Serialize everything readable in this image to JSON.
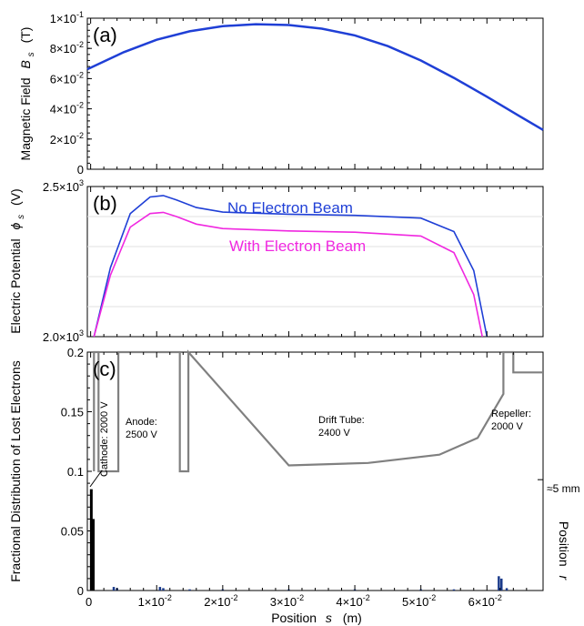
{
  "chart_data": [
    {
      "panel": "(a)",
      "type": "line",
      "ylabel": "Magnetic Field",
      "ysymbol": "B",
      "ysub": "s",
      "yunit": "(T)",
      "ylim": [
        0,
        0.1
      ],
      "xlim": [
        -0.0005,
        0.0685
      ],
      "yticks": [
        {
          "v": 0,
          "m": "0",
          "e": ""
        },
        {
          "v": 0.02,
          "m": "2×10",
          "e": "-2"
        },
        {
          "v": 0.04,
          "m": "4×10",
          "e": "-2"
        },
        {
          "v": 0.06,
          "m": "6×10",
          "e": "-2"
        },
        {
          "v": 0.08,
          "m": "8×10",
          "e": "-2"
        },
        {
          "v": 0.1,
          "m": "1×10",
          "e": "-1"
        }
      ],
      "series": [
        {
          "color": "#1f3fd6",
          "x": [
            -0.0005,
            0.005,
            0.01,
            0.015,
            0.02,
            0.025,
            0.03,
            0.035,
            0.04,
            0.045,
            0.05,
            0.055,
            0.06,
            0.065,
            0.0685
          ],
          "y": [
            0.0662,
            0.0775,
            0.0857,
            0.0913,
            0.0947,
            0.096,
            0.0955,
            0.0931,
            0.0886,
            0.0815,
            0.072,
            0.0605,
            0.048,
            0.035,
            0.026
          ]
        }
      ]
    },
    {
      "panel": "(b)",
      "type": "line",
      "ylabel": "Electric Potential",
      "ysymbol": "ϕ",
      "ysub": "s",
      "yunit": "(V)",
      "ylim": [
        2000,
        2500
      ],
      "xlim": [
        -0.0005,
        0.0685
      ],
      "yticks": [
        {
          "v": 2000,
          "m": "2.0×10",
          "e": "3"
        },
        {
          "v": 2500,
          "m": "2.5×10",
          "e": "3"
        }
      ],
      "series": [
        {
          "name": "No Electron Beam",
          "color": "#1f3fd6",
          "x": [
            0.0005,
            0.003,
            0.006,
            0.009,
            0.011,
            0.013,
            0.016,
            0.02,
            0.03,
            0.04,
            0.05,
            0.055,
            0.058,
            0.06
          ],
          "y": [
            2000,
            2230,
            2410,
            2465,
            2470,
            2455,
            2430,
            2415,
            2408,
            2404,
            2395,
            2350,
            2220,
            2000
          ]
        },
        {
          "name": "With Electron Beam",
          "color": "#f028e0",
          "x": [
            0.0005,
            0.003,
            0.006,
            0.009,
            0.011,
            0.013,
            0.016,
            0.02,
            0.03,
            0.04,
            0.05,
            0.055,
            0.058,
            0.0593
          ],
          "y": [
            2000,
            2205,
            2365,
            2410,
            2414,
            2400,
            2375,
            2360,
            2352,
            2348,
            2335,
            2280,
            2140,
            2000
          ]
        }
      ]
    },
    {
      "panel": "(c)",
      "type": "bar",
      "ylabel": "Fractional Distribution of Lost Electrons",
      "xlabel": "Position",
      "xsymbol": "s",
      "xunit": "(m)",
      "ylim": [
        0,
        0.2
      ],
      "xlim": [
        -0.0005,
        0.0685
      ],
      "yticks": [
        {
          "v": 0,
          "m": "0",
          "e": ""
        },
        {
          "v": 0.05,
          "m": "0.05",
          "e": ""
        },
        {
          "v": 0.1,
          "m": "0.1",
          "e": ""
        },
        {
          "v": 0.15,
          "m": "0.15",
          "e": ""
        },
        {
          "v": 0.2,
          "m": "0.2",
          "e": ""
        }
      ],
      "xticks": [
        {
          "v": 0,
          "m": "0",
          "e": ""
        },
        {
          "v": 0.01,
          "m": "1×10",
          "e": "-2"
        },
        {
          "v": 0.02,
          "m": "2×10",
          "e": "-2"
        },
        {
          "v": 0.03,
          "m": "3×10",
          "e": "-2"
        },
        {
          "v": 0.04,
          "m": "4×10",
          "e": "-2"
        },
        {
          "v": 0.05,
          "m": "5×10",
          "e": "-2"
        },
        {
          "v": 0.06,
          "m": "6×10",
          "e": "-2"
        }
      ],
      "bins": {
        "x": [
          0.0001,
          0.0004,
          0.0035,
          0.004,
          0.0105,
          0.011,
          0.015,
          0.02,
          0.03,
          0.04,
          0.05,
          0.055,
          0.0618,
          0.0622,
          0.063
        ],
        "y": [
          0.085,
          0.06,
          0.003,
          0.002,
          0.003,
          0.002,
          0.001,
          0.001,
          0.001,
          0.001,
          0.001,
          0.001,
          0.012,
          0.01,
          0.002
        ]
      },
      "right_axis": {
        "label": "Position",
        "symbol": "r",
        "tick_label": "≈5 mm",
        "tick_at_y": 0.093
      },
      "electrodes": [
        {
          "label": "Cathode: 2000 V",
          "rotated": true
        },
        {
          "label_lines": [
            "Anode:",
            "2500 V"
          ]
        },
        {
          "label_lines": [
            "Drift Tube:",
            "2400 V"
          ]
        },
        {
          "label_lines": [
            "Repeller:",
            "2000 V"
          ]
        }
      ],
      "outline": {
        "x": [
          0.0005,
          0.0005,
          0.0012,
          0.0012,
          0.0042,
          0.0042,
          0.0135,
          0.0135,
          0.0148,
          0.0148,
          0.03,
          0.042,
          0.0528,
          0.0586,
          0.0625,
          0.0625,
          0.064,
          0.064,
          0.0685
        ],
        "y": [
          0.1,
          0.2,
          0.2,
          0.1,
          0.1,
          0.2,
          0.2,
          0.1,
          0.1,
          0.2,
          0.105,
          0.107,
          0.114,
          0.128,
          0.165,
          0.2,
          0.2,
          0.183,
          0.183
        ]
      }
    }
  ],
  "colors": {
    "outline": "#808080",
    "bars": "#000000",
    "bars_small": "#1a3a8a",
    "grid": "#e2e2e2"
  }
}
